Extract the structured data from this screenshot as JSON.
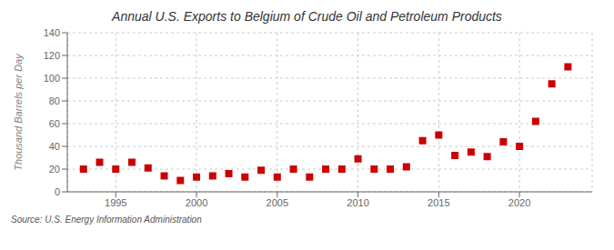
{
  "chart_data": {
    "type": "scatter",
    "title": "Annual U.S. Exports to Belgium of Crude Oil and Petroleum Products",
    "y_label": "Thousand Barrels per Day",
    "annotations": [
      "Source: U.S. Energy Information Administration"
    ],
    "x": [
      1993,
      1994,
      1995,
      1996,
      1997,
      1998,
      1999,
      2000,
      2001,
      2002,
      2003,
      2004,
      2005,
      2006,
      2007,
      2008,
      2009,
      2010,
      2011,
      2012,
      2013,
      2014,
      2015,
      2016,
      2017,
      2018,
      2019,
      2020,
      2021,
      2022,
      2023
    ],
    "values": [
      20,
      26,
      20,
      26,
      21,
      14,
      10,
      13,
      14,
      16,
      13,
      19,
      13,
      20,
      13,
      20,
      20,
      29,
      20,
      20,
      22,
      45,
      50,
      32,
      35,
      31,
      44,
      40,
      62,
      95,
      110
    ],
    "color": "#cc0000",
    "marker": "square",
    "xlim": [
      1992,
      2024.5
    ],
    "xticks": [
      1995,
      2000,
      2005,
      2010,
      2015,
      2020
    ],
    "ylim": [
      0,
      140
    ],
    "yticks": [
      0,
      20,
      40,
      60,
      80,
      100,
      120,
      140
    ],
    "grid": true
  }
}
